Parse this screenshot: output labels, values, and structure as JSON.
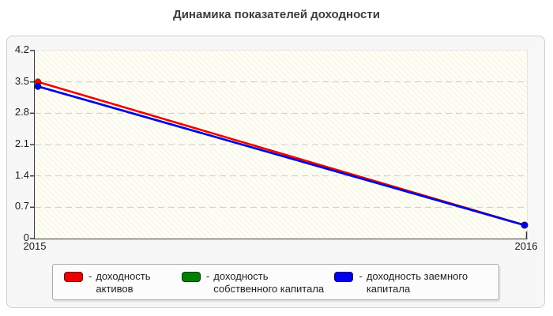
{
  "title": "Динамика показателей доходности",
  "chart_data": {
    "type": "line",
    "x": [
      "2015",
      "2016"
    ],
    "series": [
      {
        "name": "доходность активов",
        "color": "#ee0000",
        "values": [
          3.5,
          0.3
        ]
      },
      {
        "name": "доходность собственного капитала",
        "color": "#008000",
        "values": [
          3.4,
          0.3
        ]
      },
      {
        "name": "доходность заемного капитала",
        "color": "#0000ee",
        "values": [
          3.4,
          0.3
        ]
      }
    ],
    "ylim": [
      0,
      4.2
    ],
    "yticks": [
      0,
      0.7,
      1.4,
      2.1,
      2.8,
      3.5,
      4.2
    ],
    "grid": "dashed-horizontal",
    "legend_position": "bottom"
  },
  "legend": {
    "separator": "-",
    "items": [
      {
        "label": "доходность активов",
        "color": "#ee0000"
      },
      {
        "label": "доходность собственного капитала",
        "color": "#008000"
      },
      {
        "label": "доходность заемного капитала",
        "color": "#0000ee"
      }
    ]
  }
}
